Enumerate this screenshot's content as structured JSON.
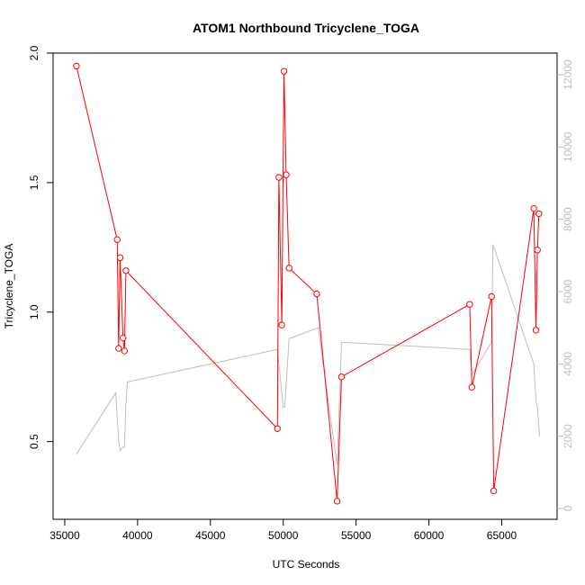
{
  "chart_data": {
    "type": "line",
    "title": "ATOM1 Northbound Tricyclene_TOGA",
    "xlabel": "UTC Seconds",
    "ylabel": "Tricyclene_TOGA",
    "xlim": [
      34200,
      68800
    ],
    "ylim": [
      0.2,
      2.0
    ],
    "y2lim": [
      -300,
      12600
    ],
    "x_ticks": [
      35000,
      40000,
      45000,
      50000,
      55000,
      60000,
      65000
    ],
    "y_ticks": [
      0.5,
      1.0,
      1.5,
      2.0
    ],
    "y2_ticks": [
      0,
      2000,
      4000,
      6000,
      8000,
      10000,
      12000
    ],
    "grid": false,
    "colors": {
      "primary": "#ff0000",
      "secondary": "#bebebe",
      "axis": "#000000"
    },
    "series": [
      {
        "axis": "left",
        "style": "line+points",
        "color": "#ff0000",
        "points": [
          [
            35800,
            1.95
          ],
          [
            38600,
            1.28
          ],
          [
            38700,
            0.86
          ],
          [
            38800,
            1.21
          ],
          [
            39000,
            0.9
          ],
          [
            39100,
            0.85
          ],
          [
            39200,
            1.16
          ],
          [
            49600,
            0.55
          ],
          [
            49700,
            1.52
          ],
          [
            49900,
            0.95
          ],
          [
            50050,
            1.93
          ],
          [
            50200,
            1.53
          ],
          [
            50400,
            1.17
          ],
          [
            52300,
            1.07
          ],
          [
            53700,
            0.27
          ],
          [
            54000,
            0.75
          ],
          [
            62800,
            1.03
          ],
          [
            62950,
            0.71
          ],
          [
            64300,
            1.06
          ],
          [
            64450,
            0.31
          ],
          [
            67200,
            1.4
          ],
          [
            67350,
            0.93
          ],
          [
            67450,
            1.24
          ],
          [
            67550,
            1.38
          ]
        ]
      },
      {
        "axis": "right",
        "style": "line",
        "color": "#bebebe",
        "points": [
          [
            35800,
            1500
          ],
          [
            38500,
            3200
          ],
          [
            38700,
            1900
          ],
          [
            38800,
            1600
          ],
          [
            39000,
            1700
          ],
          [
            39100,
            1700
          ],
          [
            39200,
            2900
          ],
          [
            39300,
            3500
          ],
          [
            49600,
            4400
          ],
          [
            49900,
            3200
          ],
          [
            50000,
            2800
          ],
          [
            50100,
            2800
          ],
          [
            50400,
            4700
          ],
          [
            52400,
            5000
          ],
          [
            53700,
            1200
          ],
          [
            54000,
            4600
          ],
          [
            62800,
            4400
          ],
          [
            62950,
            3700
          ],
          [
            64300,
            4600
          ],
          [
            64400,
            7300
          ],
          [
            67200,
            4000
          ],
          [
            67350,
            3000
          ],
          [
            67450,
            2800
          ],
          [
            67600,
            2000
          ]
        ]
      }
    ]
  }
}
